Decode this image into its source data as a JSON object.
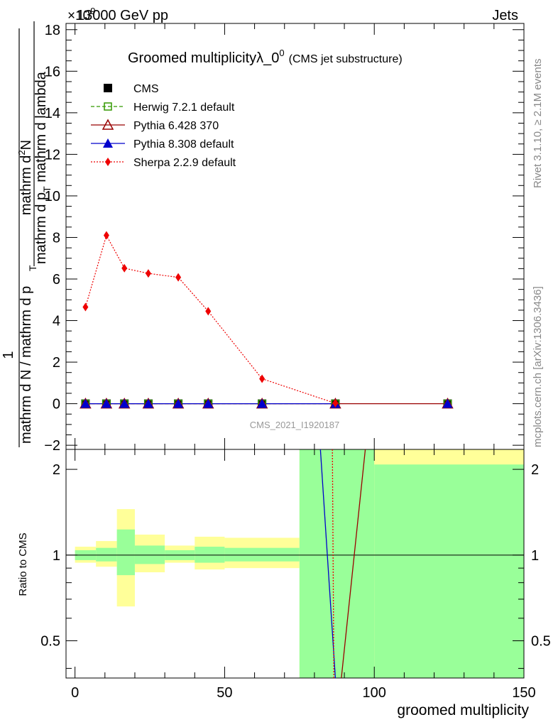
{
  "header": {
    "energy": "13000 GeV pp",
    "process": "Jets",
    "exponent_label": "×10",
    "exponent_power": "9"
  },
  "title": {
    "main": "Groomed multiplicityλ_0",
    "main_sup": "0",
    "sub": "(CMS jet substructure)"
  },
  "side_labels": {
    "rivet": "Rivet 3.1.10, ≥ 2.1M events",
    "mcplots": "mcplots.cern.ch [arXiv:1306.3436]"
  },
  "analysis_id": "CMS_2021_I1920187",
  "y_axis_label": {
    "numerator_one": "1",
    "denominator_one": "mathrm d N / mathrm d p",
    "denominator_sub": "T",
    "numerator_two": "mathrm d",
    "numerator_two_sup": "2",
    "numerator_two_end": "N",
    "denominator_two": "mathrm d p",
    "denominator_two_sub": "T",
    "denominator_two_end": " mathrm d lambda"
  },
  "ratio_ylabel": "Ratio to CMS",
  "xlabel": "groomed multiplicity",
  "colors": {
    "cms": "#000000",
    "herwig": "#339900",
    "pythia6": "#990000",
    "pythia8": "#0000cc",
    "sherpa": "#ee0000",
    "band_inner": "#99ff99",
    "band_outer": "#ffff99"
  },
  "chart_data": {
    "type": "line",
    "x_range": [
      -3,
      150
    ],
    "y_range": [
      -2.2,
      18.3
    ],
    "y_multiplier": "1e9",
    "ratio_y_range": [
      0.37,
      2.35
    ],
    "ratio_y_scale": "log",
    "x_ticks": [
      "0",
      "50",
      "100",
      "150"
    ],
    "y_ticks": [
      "−2",
      "0",
      "2",
      "4",
      "6",
      "8",
      "10",
      "12",
      "14",
      "16",
      "18"
    ],
    "ratio_y_ticks": [
      "0.5",
      "1",
      "2"
    ],
    "legend_position": "top-left",
    "x": [
      3.5,
      10.5,
      16.5,
      24.5,
      34.5,
      44.5,
      62.5,
      87.0,
      124.5
    ],
    "series": [
      {
        "name": "CMS",
        "marker": "square",
        "values": [
          0,
          0,
          0,
          0,
          0,
          0,
          0,
          0,
          0
        ]
      },
      {
        "name": "Herwig 7.2.1 default",
        "marker": "open-square",
        "line": "dashed",
        "values": [
          0,
          0,
          0,
          0,
          0,
          0,
          0,
          0,
          0
        ]
      },
      {
        "name": "Pythia 6.428 370",
        "marker": "open-triangle",
        "line": "solid",
        "values": [
          0,
          0,
          0,
          0,
          0,
          0,
          0,
          0,
          0
        ]
      },
      {
        "name": "Pythia 8.308 default",
        "marker": "triangle",
        "line": "solid",
        "values": [
          0,
          0,
          0,
          0,
          0,
          0,
          0,
          0,
          0
        ]
      },
      {
        "name": "Sherpa 2.2.9 default",
        "marker": "diamond",
        "line": "dotted",
        "values": [
          4.65,
          8.1,
          6.52,
          6.27,
          6.08,
          4.45,
          1.2,
          0.02,
          0
        ]
      }
    ],
    "ratio_bands": [
      {
        "x0": 0,
        "x1": 7,
        "inner": [
          0.96,
          1.04
        ],
        "outer": [
          0.94,
          1.07
        ]
      },
      {
        "x0": 7,
        "x1": 14,
        "inner": [
          0.95,
          1.06
        ],
        "outer": [
          0.91,
          1.12
        ]
      },
      {
        "x0": 14,
        "x1": 20,
        "inner": [
          0.85,
          1.23
        ],
        "outer": [
          0.66,
          1.45
        ]
      },
      {
        "x0": 20,
        "x1": 30,
        "inner": [
          0.93,
          1.08
        ],
        "outer": [
          0.87,
          1.18
        ]
      },
      {
        "x0": 30,
        "x1": 40,
        "inner": [
          0.96,
          1.04
        ],
        "outer": [
          0.94,
          1.08
        ]
      },
      {
        "x0": 40,
        "x1": 50,
        "inner": [
          0.94,
          1.07
        ],
        "outer": [
          0.89,
          1.16
        ]
      },
      {
        "x0": 50,
        "x1": 75,
        "inner": [
          0.95,
          1.06
        ],
        "outer": [
          0.9,
          1.15
        ]
      },
      {
        "x0": 75,
        "x1": 100,
        "inner": [
          0.37,
          2.35
        ],
        "outer": [
          0.37,
          2.35
        ]
      },
      {
        "x0": 100,
        "x1": 150,
        "inner": [
          0.37,
          2.08
        ],
        "outer": [
          0.37,
          2.35
        ]
      }
    ],
    "ratio_lines": [
      {
        "name": "Pythia 8.308 default",
        "points": [
          [
            82,
            2.35
          ],
          [
            87,
            0.37
          ]
        ]
      },
      {
        "name": "Pythia 6.428 370",
        "points": [
          [
            89,
            0.37
          ],
          [
            97,
            2.35
          ]
        ]
      },
      {
        "name": "Sherpa 2.2.9 default",
        "points": [
          [
            86,
            2.35
          ],
          [
            86.5,
            0.37
          ]
        ]
      }
    ]
  }
}
